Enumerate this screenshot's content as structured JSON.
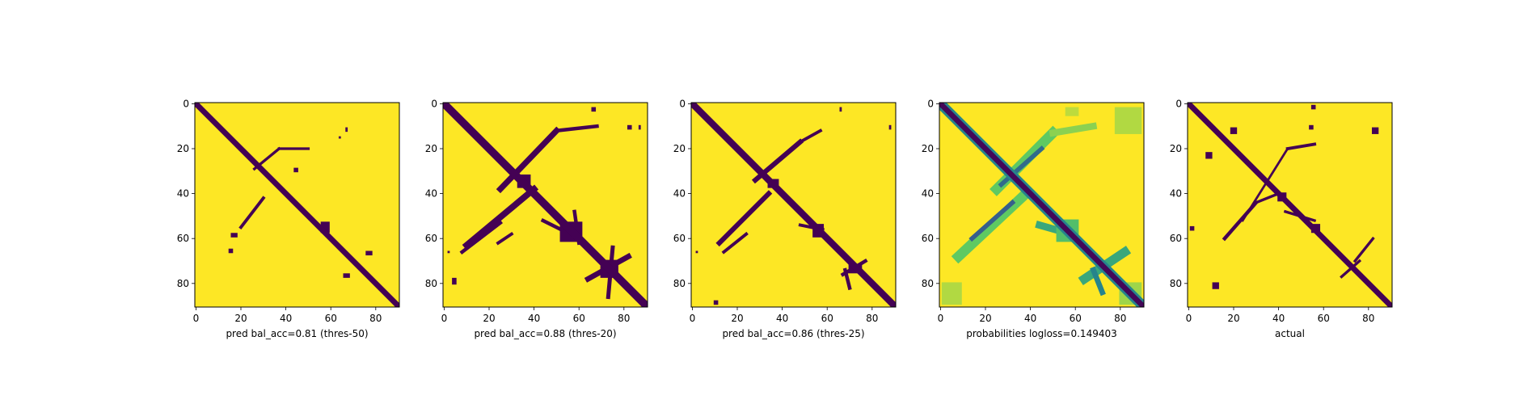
{
  "colors": {
    "background": "#ffffff",
    "matrix_low": "#440154",
    "matrix_high": "#fde725",
    "colormap": "viridis"
  },
  "chart_data": [
    {
      "type": "heatmap",
      "xlabel": "pred bal_acc=0.81 (thres-50)",
      "xlim": [
        0,
        91
      ],
      "ylim": [
        91,
        0
      ],
      "xticks": [
        "0",
        "20",
        "40",
        "60",
        "80"
      ],
      "yticks": [
        "0",
        "20",
        "40",
        "60",
        "80"
      ],
      "matrix_size": 91,
      "diagonal": {
        "value": 0,
        "width": 2.5
      },
      "regions": [
        {
          "kind": "line",
          "from": [
            26,
            29
          ],
          "to": [
            37,
            20
          ],
          "width": 1.2,
          "value": 0
        },
        {
          "kind": "line",
          "from": [
            37,
            20
          ],
          "to": [
            50,
            20
          ],
          "width": 1.2,
          "value": 0
        },
        {
          "kind": "line",
          "from": [
            20,
            55
          ],
          "to": [
            30,
            42
          ],
          "width": 1.4,
          "value": 0
        },
        {
          "kind": "rect",
          "x": [
            56,
            60
          ],
          "y": [
            53,
            58
          ],
          "value": 0
        },
        {
          "kind": "rect",
          "x": [
            76,
            79
          ],
          "y": [
            66,
            68
          ],
          "value": 0
        },
        {
          "kind": "rect",
          "x": [
            66,
            69
          ],
          "y": [
            76,
            78
          ],
          "value": 0
        },
        {
          "kind": "rect",
          "x": [
            67,
            68
          ],
          "y": [
            11,
            13
          ],
          "value": 0
        },
        {
          "kind": "rect",
          "x": [
            64,
            65
          ],
          "y": [
            15,
            16
          ],
          "value": 0
        },
        {
          "kind": "rect",
          "x": [
            16,
            19
          ],
          "y": [
            58,
            60
          ],
          "value": 0
        },
        {
          "kind": "rect",
          "x": [
            15,
            17
          ],
          "y": [
            65,
            67
          ],
          "value": 0
        },
        {
          "kind": "rect",
          "x": [
            44,
            46
          ],
          "y": [
            29,
            31
          ],
          "value": 0
        }
      ]
    },
    {
      "type": "heatmap",
      "xlabel": "pred bal_acc=0.88 (thres-20)",
      "xlim": [
        0,
        91
      ],
      "ylim": [
        91,
        0
      ],
      "xticks": [
        "0",
        "20",
        "40",
        "60",
        "80"
      ],
      "yticks": [
        "0",
        "20",
        "40",
        "60",
        "80"
      ],
      "matrix_size": 91,
      "diagonal": {
        "value": 0,
        "width": 3.5
      },
      "regions": [
        {
          "kind": "line",
          "from": [
            25,
            38
          ],
          "to": [
            50,
            12
          ],
          "width": 2.6,
          "value": 0
        },
        {
          "kind": "line",
          "from": [
            50,
            12
          ],
          "to": [
            68,
            10
          ],
          "width": 1.6,
          "value": 0
        },
        {
          "kind": "line",
          "from": [
            10,
            63
          ],
          "to": [
            40,
            38
          ],
          "width": 2.8,
          "value": 0
        },
        {
          "kind": "line",
          "from": [
            8,
            66
          ],
          "to": [
            25,
            53
          ],
          "width": 1.6,
          "value": 0
        },
        {
          "kind": "line",
          "from": [
            24,
            62
          ],
          "to": [
            30,
            58
          ],
          "width": 1.4,
          "value": 0
        },
        {
          "kind": "line",
          "from": [
            44,
            52
          ],
          "to": [
            56,
            58
          ],
          "width": 1.6,
          "value": 0
        },
        {
          "kind": "line",
          "from": [
            58,
            48
          ],
          "to": [
            60,
            62
          ],
          "width": 1.6,
          "value": 0
        },
        {
          "kind": "line",
          "from": [
            64,
            78
          ],
          "to": [
            82,
            68
          ],
          "width": 2.4,
          "value": 0
        },
        {
          "kind": "line",
          "from": [
            75,
            64
          ],
          "to": [
            73,
            86
          ],
          "width": 1.8,
          "value": 0
        },
        {
          "kind": "rect",
          "x": [
            33,
            39
          ],
          "y": [
            32,
            38
          ],
          "value": 0
        },
        {
          "kind": "rect",
          "x": [
            52,
            62
          ],
          "y": [
            53,
            62
          ],
          "value": 0
        },
        {
          "kind": "rect",
          "x": [
            70,
            78
          ],
          "y": [
            70,
            78
          ],
          "value": 0
        },
        {
          "kind": "rect",
          "x": [
            66,
            68
          ],
          "y": [
            2,
            4
          ],
          "value": 0
        },
        {
          "kind": "rect",
          "x": [
            82,
            84
          ],
          "y": [
            10,
            12
          ],
          "value": 0
        },
        {
          "kind": "rect",
          "x": [
            4,
            6
          ],
          "y": [
            78,
            81
          ],
          "value": 0
        },
        {
          "kind": "rect",
          "x": [
            2,
            3
          ],
          "y": [
            66,
            67
          ],
          "value": 0
        },
        {
          "kind": "rect",
          "x": [
            87,
            88
          ],
          "y": [
            10,
            12
          ],
          "value": 0
        }
      ]
    },
    {
      "type": "heatmap",
      "xlabel": "pred bal_acc=0.86 (thres-25)",
      "xlim": [
        0,
        91
      ],
      "ylim": [
        91,
        0
      ],
      "xticks": [
        "0",
        "20",
        "40",
        "60",
        "80"
      ],
      "yticks": [
        "0",
        "20",
        "40",
        "60",
        "80"
      ],
      "matrix_size": 91,
      "diagonal": {
        "value": 0,
        "width": 3.0
      },
      "regions": [
        {
          "kind": "line",
          "from": [
            28,
            34
          ],
          "to": [
            48,
            17
          ],
          "width": 2.2,
          "value": 0
        },
        {
          "kind": "line",
          "from": [
            48,
            17
          ],
          "to": [
            57,
            12
          ],
          "width": 1.4,
          "value": 0
        },
        {
          "kind": "line",
          "from": [
            12,
            62
          ],
          "to": [
            34,
            40
          ],
          "width": 2.2,
          "value": 0
        },
        {
          "kind": "line",
          "from": [
            14,
            66
          ],
          "to": [
            24,
            58
          ],
          "width": 1.4,
          "value": 0
        },
        {
          "kind": "line",
          "from": [
            48,
            54
          ],
          "to": [
            58,
            56
          ],
          "width": 1.4,
          "value": 0
        },
        {
          "kind": "line",
          "from": [
            67,
            76
          ],
          "to": [
            77,
            70
          ],
          "width": 1.6,
          "value": 0
        },
        {
          "kind": "line",
          "from": [
            68,
            74
          ],
          "to": [
            70,
            82
          ],
          "width": 1.6,
          "value": 0
        },
        {
          "kind": "rect",
          "x": [
            34,
            39
          ],
          "y": [
            34,
            38
          ],
          "value": 0
        },
        {
          "kind": "rect",
          "x": [
            54,
            59
          ],
          "y": [
            54,
            60
          ],
          "value": 0
        },
        {
          "kind": "rect",
          "x": [
            70,
            76
          ],
          "y": [
            72,
            76
          ],
          "value": 0
        },
        {
          "kind": "rect",
          "x": [
            66,
            67
          ],
          "y": [
            2,
            4
          ],
          "value": 0
        },
        {
          "kind": "rect",
          "x": [
            88,
            89
          ],
          "y": [
            10,
            12
          ],
          "value": 0
        },
        {
          "kind": "rect",
          "x": [
            2,
            3
          ],
          "y": [
            66,
            67
          ],
          "value": 0
        },
        {
          "kind": "rect",
          "x": [
            10,
            12
          ],
          "y": [
            88,
            90
          ],
          "value": 0
        }
      ]
    },
    {
      "type": "heatmap",
      "xlabel": "probabilities logloss=0.149403",
      "xlim": [
        0,
        91
      ],
      "ylim": [
        91,
        0
      ],
      "xticks": [
        "0",
        "20",
        "40",
        "60",
        "80"
      ],
      "yticks": [
        "0",
        "20",
        "40",
        "60",
        "80"
      ],
      "matrix_size": 91,
      "diagonal": {
        "value": 0.02,
        "width": 2.4,
        "halo_value": 0.45,
        "halo_width": 4.5
      },
      "regions": [
        {
          "kind": "line",
          "from": [
            25,
            38
          ],
          "to": [
            50,
            13
          ],
          "width": 4.5,
          "value": 0.75
        },
        {
          "kind": "line",
          "from": [
            27,
            36
          ],
          "to": [
            45,
            20
          ],
          "width": 2.0,
          "value": 0.35
        },
        {
          "kind": "line",
          "from": [
            50,
            13
          ],
          "to": [
            68,
            10
          ],
          "width": 3.0,
          "value": 0.82
        },
        {
          "kind": "line",
          "from": [
            8,
            68
          ],
          "to": [
            38,
            40
          ],
          "width": 4.5,
          "value": 0.75
        },
        {
          "kind": "line",
          "from": [
            14,
            60
          ],
          "to": [
            32,
            44
          ],
          "width": 2.0,
          "value": 0.3
        },
        {
          "kind": "line",
          "from": [
            44,
            54
          ],
          "to": [
            58,
            58
          ],
          "width": 3.2,
          "value": 0.6
        },
        {
          "kind": "line",
          "from": [
            64,
            78
          ],
          "to": [
            82,
            66
          ],
          "width": 4.0,
          "value": 0.6
        },
        {
          "kind": "line",
          "from": [
            68,
            74
          ],
          "to": [
            72,
            84
          ],
          "width": 2.4,
          "value": 0.45
        },
        {
          "kind": "rect",
          "x": [
            52,
            62
          ],
          "y": [
            52,
            62
          ],
          "value": 0.7
        },
        {
          "kind": "rect",
          "x": [
            1,
            10
          ],
          "y": [
            80,
            90
          ],
          "value": 0.88
        },
        {
          "kind": "rect",
          "x": [
            78,
            90
          ],
          "y": [
            2,
            14
          ],
          "value": 0.88
        },
        {
          "kind": "rect",
          "x": [
            80,
            90
          ],
          "y": [
            80,
            90
          ],
          "value": 0.85
        },
        {
          "kind": "rect",
          "x": [
            56,
            62
          ],
          "y": [
            2,
            6
          ],
          "value": 0.9
        }
      ]
    },
    {
      "type": "heatmap",
      "xlabel": "actual",
      "xlim": [
        0,
        91
      ],
      "ylim": [
        91,
        0
      ],
      "xticks": [
        "0",
        "20",
        "40",
        "60",
        "80"
      ],
      "yticks": [
        "0",
        "20",
        "40",
        "60",
        "80"
      ],
      "matrix_size": 91,
      "diagonal": {
        "value": 0,
        "width": 2.5
      },
      "regions": [
        {
          "kind": "line",
          "from": [
            44,
            20
          ],
          "to": [
            24,
            52
          ],
          "width": 1.0,
          "value": 0
        },
        {
          "kind": "line",
          "from": [
            44,
            20
          ],
          "to": [
            56,
            18
          ],
          "width": 1.4,
          "value": 0
        },
        {
          "kind": "line",
          "from": [
            43,
            48
          ],
          "to": [
            56,
            52
          ],
          "width": 1.2,
          "value": 0
        },
        {
          "kind": "line",
          "from": [
            30,
            44
          ],
          "to": [
            16,
            60
          ],
          "width": 1.6,
          "value": 0
        },
        {
          "kind": "line",
          "from": [
            30,
            44
          ],
          "to": [
            40,
            40
          ],
          "width": 1.2,
          "value": 0
        },
        {
          "kind": "line",
          "from": [
            74,
            70
          ],
          "to": [
            82,
            60
          ],
          "width": 1.2,
          "value": 0
        },
        {
          "kind": "line",
          "from": [
            68,
            77
          ],
          "to": [
            76,
            70
          ],
          "width": 1.2,
          "value": 0
        },
        {
          "kind": "rect",
          "x": [
            40,
            44
          ],
          "y": [
            40,
            44
          ],
          "value": 0
        },
        {
          "kind": "rect",
          "x": [
            55,
            59
          ],
          "y": [
            54,
            58
          ],
          "value": 0
        },
        {
          "kind": "rect",
          "x": [
            11,
            14
          ],
          "y": [
            80,
            83
          ],
          "value": 0
        },
        {
          "kind": "rect",
          "x": [
            8,
            11
          ],
          "y": [
            22,
            25
          ],
          "value": 0
        },
        {
          "kind": "rect",
          "x": [
            19,
            22
          ],
          "y": [
            11,
            14
          ],
          "value": 0
        },
        {
          "kind": "rect",
          "x": [
            82,
            85
          ],
          "y": [
            11,
            14
          ],
          "value": 0
        },
        {
          "kind": "rect",
          "x": [
            55,
            57
          ],
          "y": [
            1,
            3
          ],
          "value": 0
        },
        {
          "kind": "rect",
          "x": [
            1,
            3
          ],
          "y": [
            55,
            57
          ],
          "value": 0
        },
        {
          "kind": "rect",
          "x": [
            54,
            56
          ],
          "y": [
            10,
            12
          ],
          "value": 0
        }
      ]
    }
  ]
}
